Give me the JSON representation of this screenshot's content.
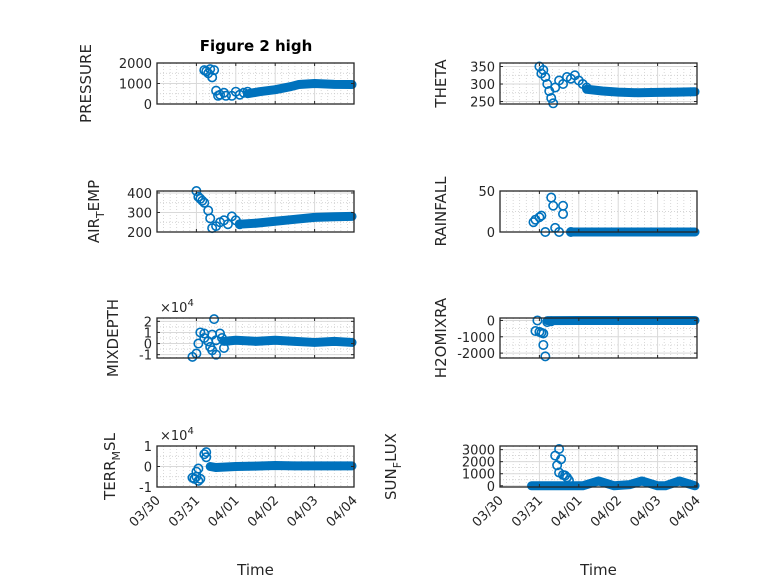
{
  "figure": {
    "title": "Figure 2 high",
    "marker_color": "#0072BD",
    "axis_color": "#262626",
    "grid_major_color": "#d9d9d9",
    "grid_minor_color": "#c8c8c8"
  },
  "chart_data": [
    {
      "id": "pressure",
      "type": "scatter",
      "title": "Figure 2 high",
      "ylabel": "PRESSURE",
      "ylabel_sub": null,
      "xlabel": "",
      "xticklabels_visible": false,
      "ylim": [
        0,
        2000
      ],
      "yticks": [
        0,
        1000,
        2000
      ],
      "yticklabels": [
        "0",
        "1000",
        "2000"
      ],
      "exponent": null,
      "xlim_days": [
        0,
        5
      ],
      "outliers": [
        [
          1.2,
          1650
        ],
        [
          1.3,
          1500
        ],
        [
          1.35,
          1700
        ],
        [
          1.4,
          1300
        ],
        [
          1.25,
          1600
        ],
        [
          1.45,
          1650
        ],
        [
          1.5,
          650
        ],
        [
          1.6,
          450
        ],
        [
          1.7,
          550
        ],
        [
          1.75,
          400
        ],
        [
          1.9,
          400
        ],
        [
          2.0,
          600
        ],
        [
          2.1,
          450
        ],
        [
          2.2,
          550
        ],
        [
          2.3,
          600
        ],
        [
          1.55,
          400
        ]
      ],
      "trend": [
        [
          2.3,
          500
        ],
        [
          2.6,
          600
        ],
        [
          3.0,
          700
        ],
        [
          3.4,
          850
        ],
        [
          3.6,
          950
        ],
        [
          4.0,
          1000
        ],
        [
          4.5,
          960
        ],
        [
          4.95,
          950
        ]
      ]
    },
    {
      "id": "theta",
      "type": "scatter",
      "title": "",
      "ylabel": "THETA",
      "ylabel_sub": null,
      "xlabel": "",
      "xticklabels_visible": false,
      "ylim": [
        243,
        360
      ],
      "yticks": [
        250,
        300,
        350
      ],
      "yticklabels": [
        "250",
        "300",
        "350"
      ],
      "exponent": null,
      "xlim_days": [
        0,
        5
      ],
      "outliers": [
        [
          1.0,
          350
        ],
        [
          1.05,
          330
        ],
        [
          1.1,
          340
        ],
        [
          1.15,
          320
        ],
        [
          1.2,
          300
        ],
        [
          1.25,
          280
        ],
        [
          1.3,
          260
        ],
        [
          1.35,
          245
        ],
        [
          1.4,
          290
        ],
        [
          1.5,
          310
        ],
        [
          1.6,
          300
        ],
        [
          1.7,
          320
        ],
        [
          1.8,
          315
        ],
        [
          1.9,
          325
        ],
        [
          2.0,
          310
        ],
        [
          2.1,
          300
        ],
        [
          2.2,
          290
        ]
      ],
      "trend": [
        [
          2.2,
          285
        ],
        [
          2.6,
          280
        ],
        [
          3.0,
          277
        ],
        [
          3.5,
          275
        ],
        [
          4.0,
          276
        ],
        [
          4.5,
          277
        ],
        [
          4.95,
          278
        ]
      ]
    },
    {
      "id": "air_temp",
      "type": "scatter",
      "title": "",
      "ylabel": "AIR",
      "ylabel_sub": "T",
      "ylabel_rest": "EMP",
      "xlabel": "",
      "xticklabels_visible": false,
      "ylim": [
        200,
        410
      ],
      "yticks": [
        200,
        300,
        400
      ],
      "yticklabels": [
        "200",
        "300",
        "400"
      ],
      "exponent": null,
      "xlim_days": [
        0,
        5
      ],
      "outliers": [
        [
          1.0,
          410
        ],
        [
          1.05,
          380
        ],
        [
          1.1,
          370
        ],
        [
          1.15,
          360
        ],
        [
          1.2,
          350
        ],
        [
          1.3,
          310
        ],
        [
          1.35,
          270
        ],
        [
          1.4,
          220
        ],
        [
          1.5,
          230
        ],
        [
          1.6,
          250
        ],
        [
          1.7,
          260
        ],
        [
          1.8,
          240
        ],
        [
          1.9,
          280
        ],
        [
          2.0,
          260
        ],
        [
          2.1,
          240
        ]
      ],
      "trend": [
        [
          2.1,
          240
        ],
        [
          2.5,
          245
        ],
        [
          3.0,
          255
        ],
        [
          3.5,
          265
        ],
        [
          4.0,
          275
        ],
        [
          4.5,
          278
        ],
        [
          4.95,
          280
        ]
      ]
    },
    {
      "id": "rainfall",
      "type": "scatter",
      "title": "",
      "ylabel": "RAINFALL",
      "ylabel_sub": null,
      "xlabel": "",
      "xticklabels_visible": false,
      "ylim": [
        0,
        50
      ],
      "yticks": [
        0,
        50
      ],
      "yticklabels": [
        "0",
        "50"
      ],
      "exponent": null,
      "xlim_days": [
        0,
        5
      ],
      "outliers": [
        [
          0.85,
          12
        ],
        [
          0.9,
          15
        ],
        [
          1.0,
          18
        ],
        [
          1.05,
          20
        ],
        [
          1.15,
          0
        ],
        [
          1.3,
          42
        ],
        [
          1.35,
          32
        ],
        [
          1.4,
          5
        ],
        [
          1.6,
          32
        ],
        [
          1.6,
          22
        ],
        [
          1.5,
          0
        ],
        [
          1.8,
          0
        ]
      ],
      "trend": [
        [
          1.8,
          0
        ],
        [
          2.5,
          0
        ],
        [
          3.5,
          0
        ],
        [
          4.5,
          0
        ],
        [
          4.95,
          0
        ]
      ]
    },
    {
      "id": "mixdepth",
      "type": "scatter",
      "title": "",
      "ylabel": "MIXDEPTH",
      "ylabel_sub": null,
      "xlabel": "",
      "xticklabels_visible": false,
      "ylim": [
        -1.3,
        2.3
      ],
      "yticks": [
        -1,
        0,
        1,
        2
      ],
      "yticklabels": [
        "-1",
        "0",
        "1",
        "2"
      ],
      "exponent": "4",
      "xlim_days": [
        0,
        5
      ],
      "outliers": [
        [
          0.9,
          -1.2
        ],
        [
          1.0,
          -0.9
        ],
        [
          1.05,
          0
        ],
        [
          1.1,
          1.0
        ],
        [
          1.2,
          0.5
        ],
        [
          1.3,
          0.2
        ],
        [
          1.35,
          -0.3
        ],
        [
          1.4,
          0.8
        ],
        [
          1.5,
          0.3
        ],
        [
          1.6,
          0.9
        ],
        [
          1.4,
          -0.6
        ],
        [
          1.45,
          2.2
        ],
        [
          1.5,
          -1.0
        ],
        [
          1.2,
          0.9
        ],
        [
          1.7,
          -0.4
        ],
        [
          1.65,
          0.5
        ]
      ],
      "trend": [
        [
          1.7,
          0.2
        ],
        [
          2.0,
          0.3
        ],
        [
          2.5,
          0.2
        ],
        [
          3.0,
          0.3
        ],
        [
          3.5,
          0.2
        ],
        [
          4.0,
          0.1
        ],
        [
          4.5,
          0.2
        ],
        [
          4.95,
          0.1
        ]
      ]
    },
    {
      "id": "h2omixra",
      "type": "scatter",
      "title": "",
      "ylabel": "H2OMIXRA",
      "ylabel_sub": null,
      "xlabel": "",
      "xticklabels_visible": false,
      "ylim": [
        -2300,
        150
      ],
      "yticks": [
        -2000,
        -1000,
        0
      ],
      "yticklabels": [
        "-2000",
        "-1000",
        "0"
      ],
      "exponent": null,
      "xlim_days": [
        0,
        5
      ],
      "outliers": [
        [
          0.95,
          0
        ],
        [
          0.9,
          -650
        ],
        [
          1.0,
          -700
        ],
        [
          1.05,
          -750
        ],
        [
          1.1,
          -800
        ],
        [
          1.1,
          -1500
        ],
        [
          1.15,
          -2200
        ],
        [
          1.2,
          -100
        ],
        [
          1.3,
          -50
        ]
      ],
      "trend": [
        [
          1.2,
          -10
        ],
        [
          2.0,
          0
        ],
        [
          3.0,
          0
        ],
        [
          4.0,
          0
        ],
        [
          4.95,
          0
        ]
      ]
    },
    {
      "id": "terr_msl",
      "type": "scatter",
      "title": "",
      "ylabel": "TERR",
      "ylabel_sub": "M",
      "ylabel_rest": "SL",
      "xlabel": "Time",
      "xticklabels_visible": true,
      "ylim": [
        -1,
        1
      ],
      "yticks": [
        -1,
        0,
        1
      ],
      "yticklabels": [
        "-1",
        "0",
        "1"
      ],
      "exponent": "4",
      "xlim_days": [
        0,
        5
      ],
      "outliers": [
        [
          0.9,
          -0.55
        ],
        [
          0.95,
          -0.6
        ],
        [
          1.0,
          -0.5
        ],
        [
          1.0,
          -0.25
        ],
        [
          1.05,
          -0.7
        ],
        [
          1.1,
          -0.6
        ],
        [
          1.2,
          0.6
        ],
        [
          1.25,
          0.7
        ],
        [
          1.25,
          0.45
        ],
        [
          1.05,
          -0.1
        ]
      ],
      "trend": [
        [
          1.35,
          0
        ],
        [
          1.5,
          -0.05
        ],
        [
          2.0,
          0
        ],
        [
          2.5,
          0.02
        ],
        [
          3.0,
          0.05
        ],
        [
          3.5,
          0.03
        ],
        [
          4.0,
          0.03
        ],
        [
          4.95,
          0.03
        ]
      ]
    },
    {
      "id": "sun_flux",
      "type": "scatter",
      "title": "",
      "ylabel": "SUN",
      "ylabel_sub": "F",
      "ylabel_rest": "LUX",
      "xlabel": "Time",
      "xticklabels_visible": true,
      "ylim": [
        -100,
        3300
      ],
      "yticks": [
        0,
        1000,
        2000,
        3000
      ],
      "yticklabels": [
        "0",
        "1000",
        "2000",
        "3000"
      ],
      "exponent": null,
      "xlim_days": [
        0,
        5
      ],
      "outliers": [
        [
          1.5,
          3050
        ],
        [
          1.4,
          2500
        ],
        [
          1.55,
          2200
        ],
        [
          1.45,
          1700
        ],
        [
          1.5,
          1100
        ],
        [
          1.6,
          900
        ],
        [
          1.7,
          700
        ],
        [
          1.75,
          450
        ],
        [
          1.65,
          850
        ]
      ],
      "trend": [
        [
          0.8,
          0
        ],
        [
          1.3,
          0
        ],
        [
          1.8,
          0
        ],
        [
          2.1,
          0
        ],
        [
          2.5,
          400
        ],
        [
          2.9,
          0
        ],
        [
          3.3,
          100
        ],
        [
          3.6,
          400
        ],
        [
          4.0,
          0
        ],
        [
          4.2,
          0
        ],
        [
          4.55,
          400
        ],
        [
          4.95,
          0
        ]
      ]
    }
  ],
  "xaxis": {
    "ticklabels": [
      "03/30",
      "03/31",
      "04/01",
      "04/02",
      "04/03",
      "04/04"
    ],
    "label": "Time"
  }
}
